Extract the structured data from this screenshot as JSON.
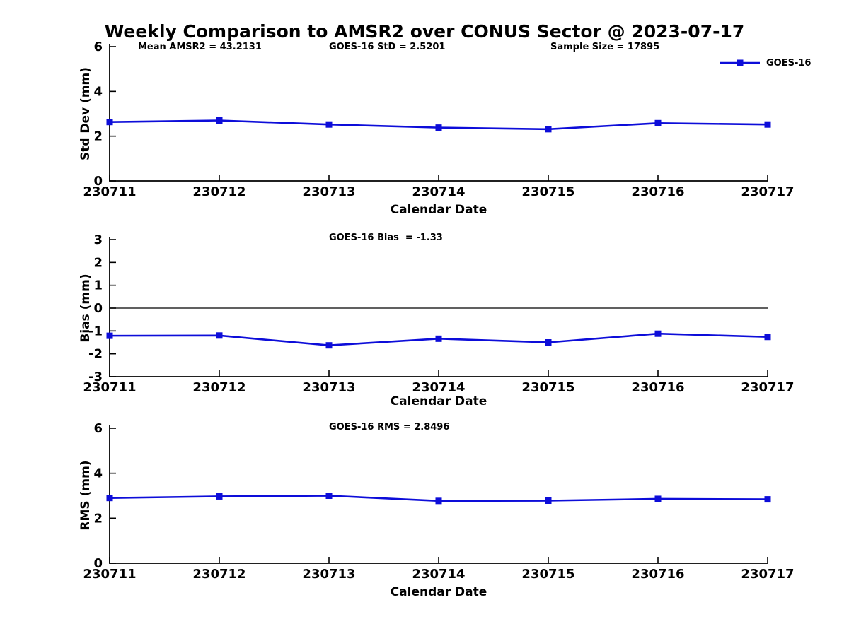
{
  "page_title": "Weekly Comparison to AMSR2 over CONUS Sector @ 2023-07-17",
  "legend": {
    "label": "GOES-16",
    "position": "top-right",
    "line_color": "#0d0dd9"
  },
  "colors": {
    "line": "#0d0dd9",
    "axis": "#000000",
    "text": "#000000",
    "background": "#ffffff"
  },
  "chart_data": [
    {
      "type": "line",
      "series_name": "GOES-16",
      "annotations": [
        "Mean AMSR2 = 43.2131",
        "GOES-16 StD = 2.5201",
        "Sample Size = 17895"
      ],
      "categories": [
        "230711",
        "230712",
        "230713",
        "230714",
        "230715",
        "230716",
        "230717"
      ],
      "values": [
        2.63,
        2.7,
        2.52,
        2.38,
        2.31,
        2.58,
        2.52
      ],
      "xlabel": "Calendar Date",
      "ylabel": "Std Dev (mm)",
      "ylim": [
        0,
        6
      ],
      "yticks": [
        0,
        2,
        4,
        6
      ],
      "grid": false,
      "zero_line": false,
      "marker": "square"
    },
    {
      "type": "line",
      "series_name": "GOES-16",
      "annotations": [
        "GOES-16 Bias  = -1.33"
      ],
      "categories": [
        "230711",
        "230712",
        "230713",
        "230714",
        "230715",
        "230716",
        "230717"
      ],
      "values": [
        -1.21,
        -1.2,
        -1.63,
        -1.34,
        -1.5,
        -1.12,
        -1.26
      ],
      "xlabel": "Calendar Date",
      "ylabel": "Bias (mm)",
      "ylim": [
        -3,
        3
      ],
      "yticks": [
        -3,
        -2,
        -1,
        0,
        1,
        2,
        3
      ],
      "grid": false,
      "zero_line": true,
      "marker": "square"
    },
    {
      "type": "line",
      "series_name": "GOES-16",
      "annotations": [
        "GOES-16 RMS = 2.8496"
      ],
      "categories": [
        "230711",
        "230712",
        "230713",
        "230714",
        "230715",
        "230716",
        "230717"
      ],
      "values": [
        2.9,
        2.97,
        3.0,
        2.77,
        2.78,
        2.86,
        2.84
      ],
      "xlabel": "Calendar Date",
      "ylabel": "RMS (mm)",
      "ylim": [
        0,
        6
      ],
      "yticks": [
        0,
        2,
        4,
        6
      ],
      "grid": false,
      "zero_line": false,
      "marker": "square"
    }
  ]
}
